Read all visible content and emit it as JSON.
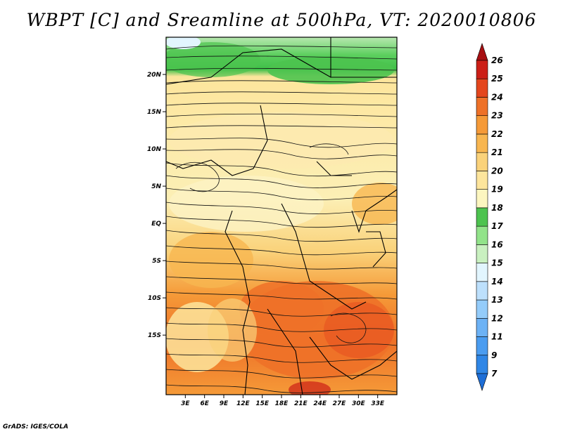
{
  "title": "WBPT [C] and Sreamline at 500hPa, VT: 2020010806",
  "credit": "GrADS: IGES/COLA",
  "map": {
    "lat_range": [
      -23,
      25
    ],
    "lon_range": [
      0,
      36
    ],
    "lat_ticks": [
      {
        "value": 20,
        "label": "20N"
      },
      {
        "value": 15,
        "label": "15N"
      },
      {
        "value": 10,
        "label": "10N"
      },
      {
        "value": 5,
        "label": "5N"
      },
      {
        "value": 0,
        "label": "EQ"
      },
      {
        "value": -5,
        "label": "5S"
      },
      {
        "value": -10,
        "label": "10S"
      },
      {
        "value": -15,
        "label": "15S"
      }
    ],
    "lon_ticks": [
      {
        "value": 3,
        "label": "3E"
      },
      {
        "value": 6,
        "label": "6E"
      },
      {
        "value": 9,
        "label": "9E"
      },
      {
        "value": 12,
        "label": "12E"
      },
      {
        "value": 15,
        "label": "15E"
      },
      {
        "value": 18,
        "label": "18E"
      },
      {
        "value": 21,
        "label": "21E"
      },
      {
        "value": 24,
        "label": "24E"
      },
      {
        "value": 27,
        "label": "27E"
      },
      {
        "value": 30,
        "label": "30E"
      },
      {
        "value": 33,
        "label": "33E"
      }
    ]
  },
  "colorbar": {
    "levels": [
      "7",
      "9",
      "11",
      "12",
      "13",
      "14",
      "15",
      "16",
      "17",
      "18",
      "19",
      "20",
      "21",
      "22",
      "23",
      "24",
      "25",
      "26"
    ],
    "colors": [
      "#1e6ed6",
      "#2f86e6",
      "#4a9cf0",
      "#6cb2f5",
      "#94ccfa",
      "#bde0fc",
      "#e2f5fe",
      "#c9f0c0",
      "#92e38a",
      "#4dc34f",
      "#fcf6c0",
      "#fde59c",
      "#fad27a",
      "#f8b650",
      "#f59a38",
      "#ee7128",
      "#e4461d",
      "#cc1f17",
      "#a70f12"
    ]
  }
}
